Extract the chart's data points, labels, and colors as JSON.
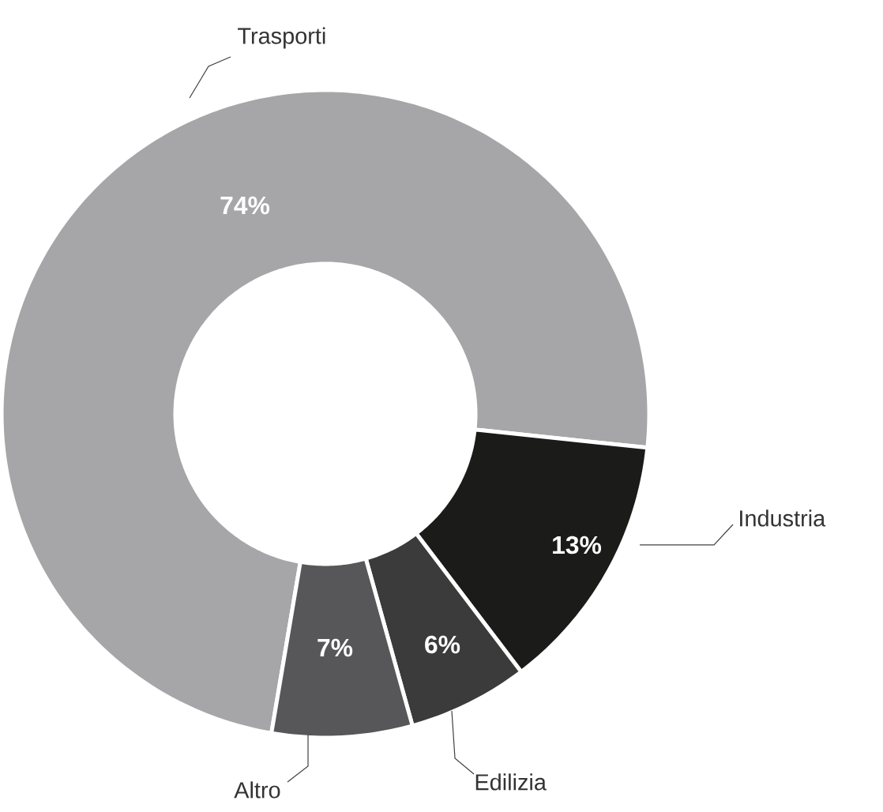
{
  "chart_data": {
    "type": "donut",
    "categories": [
      "Trasporti",
      "Industria",
      "Edilizia",
      "Altro"
    ],
    "values": [
      74,
      13,
      6,
      7
    ],
    "colors": [
      "#a6a6a8",
      "#1b1b19",
      "#3b3b3b",
      "#575759"
    ],
    "value_labels": [
      "74%",
      "13%",
      "6%",
      "7%"
    ]
  }
}
